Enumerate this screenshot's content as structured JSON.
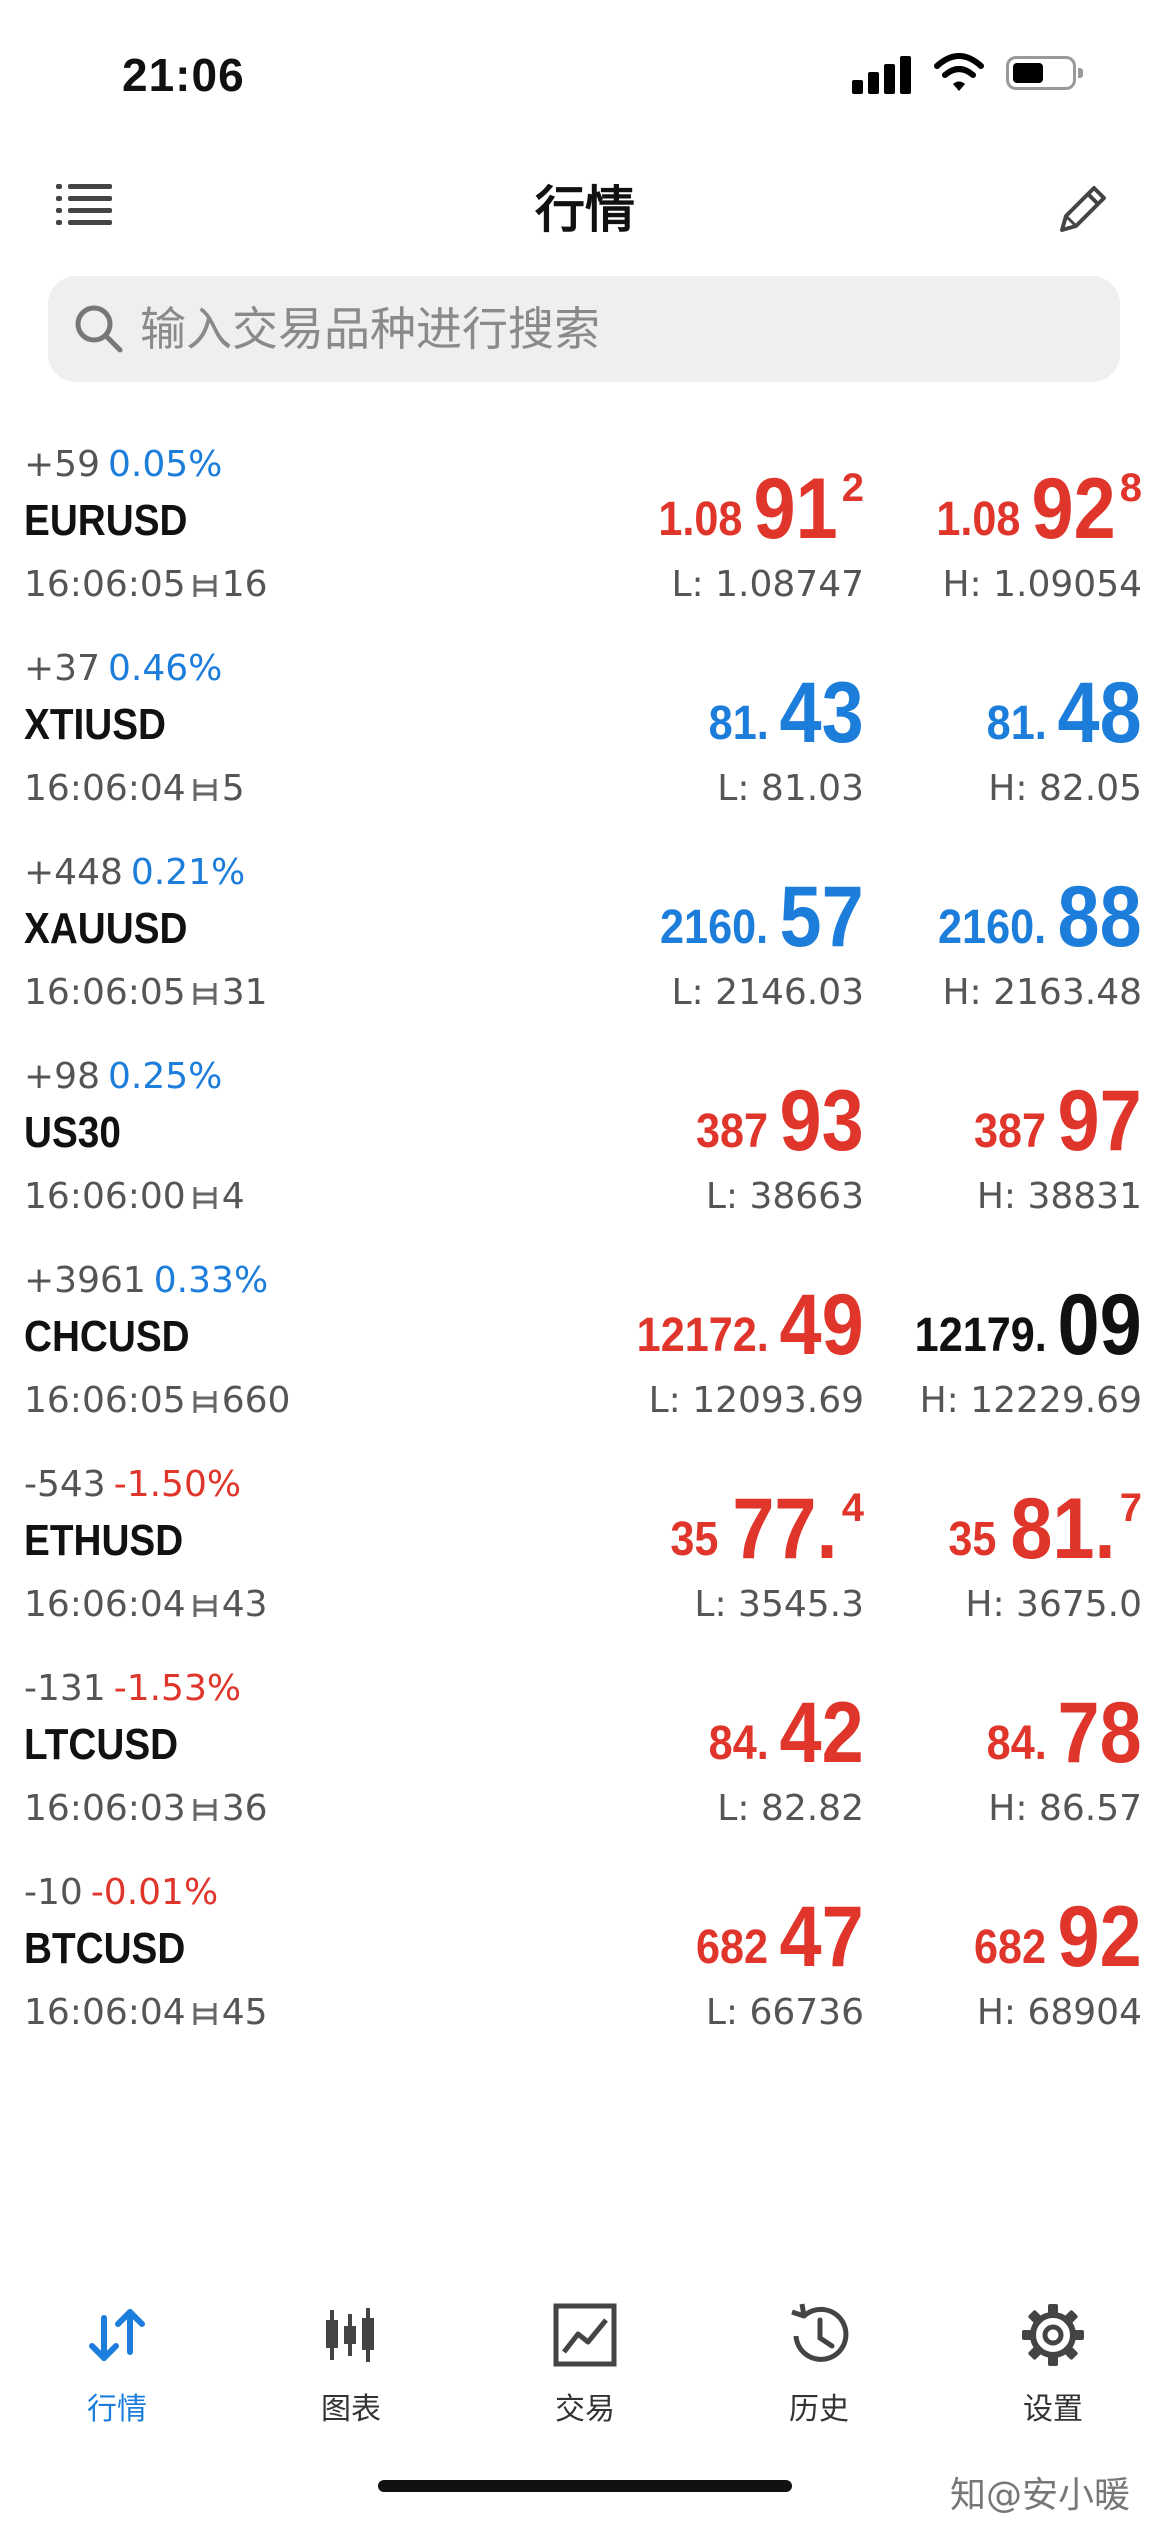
{
  "status_bar": {
    "time": "21:06"
  },
  "header": {
    "title": "行情"
  },
  "search": {
    "placeholder": "输入交易品种进行搜索"
  },
  "quotes": [
    {
      "change": "+59",
      "change_pct": "0.05%",
      "pct_color": "blue",
      "symbol": "EURUSD",
      "time": "16:06:05",
      "spread": "16",
      "bid": {
        "small": "1.08",
        "big": "91",
        "sup": "2",
        "color": "red"
      },
      "low": "L: 1.08747",
      "ask": {
        "small": "1.08",
        "big": "92",
        "sup": "8",
        "color": "red"
      },
      "high": "H: 1.09054"
    },
    {
      "change": "+37",
      "change_pct": "0.46%",
      "pct_color": "blue",
      "symbol": "XTIUSD",
      "time": "16:06:04",
      "spread": "5",
      "bid": {
        "small": "81.",
        "big": "43",
        "sup": "",
        "color": "blue"
      },
      "low": "L: 81.03",
      "ask": {
        "small": "81.",
        "big": "48",
        "sup": "",
        "color": "blue"
      },
      "high": "H: 82.05"
    },
    {
      "change": "+448",
      "change_pct": "0.21%",
      "pct_color": "blue",
      "symbol": "XAUUSD",
      "time": "16:06:05",
      "spread": "31",
      "bid": {
        "small": "2160.",
        "big": "57",
        "sup": "",
        "color": "blue"
      },
      "low": "L: 2146.03",
      "ask": {
        "small": "2160.",
        "big": "88",
        "sup": "",
        "color": "blue"
      },
      "high": "H: 2163.48"
    },
    {
      "change": "+98",
      "change_pct": "0.25%",
      "pct_color": "blue",
      "symbol": "US30",
      "time": "16:06:00",
      "spread": "4",
      "bid": {
        "small": "387",
        "big": "93",
        "sup": "",
        "color": "red"
      },
      "low": "L: 38663",
      "ask": {
        "small": "387",
        "big": "97",
        "sup": "",
        "color": "red"
      },
      "high": "H: 38831"
    },
    {
      "change": "+3961",
      "change_pct": "0.33%",
      "pct_color": "blue",
      "symbol": "CHCUSD",
      "time": "16:06:05",
      "spread": "660",
      "bid": {
        "small": "12172.",
        "big": "49",
        "sup": "",
        "color": "red"
      },
      "low": "L: 12093.69",
      "ask": {
        "small": "12179.",
        "big": "09",
        "sup": "",
        "color": "black"
      },
      "high": "H: 12229.69"
    },
    {
      "change": "-543",
      "change_pct": "-1.50%",
      "pct_color": "red",
      "symbol": "ETHUSD",
      "time": "16:06:04",
      "spread": "43",
      "bid": {
        "small": "35",
        "big": "77.",
        "sup": "4",
        "color": "red"
      },
      "low": "L: 3545.3",
      "ask": {
        "small": "35",
        "big": "81.",
        "sup": "7",
        "color": "red"
      },
      "high": "H: 3675.0"
    },
    {
      "change": "-131",
      "change_pct": "-1.53%",
      "pct_color": "red",
      "symbol": "LTCUSD",
      "time": "16:06:03",
      "spread": "36",
      "bid": {
        "small": "84.",
        "big": "42",
        "sup": "",
        "color": "red"
      },
      "low": "L: 82.82",
      "ask": {
        "small": "84.",
        "big": "78",
        "sup": "",
        "color": "red"
      },
      "high": "H: 86.57"
    },
    {
      "change": "-10",
      "change_pct": "-0.01%",
      "pct_color": "red",
      "symbol": "BTCUSD",
      "time": "16:06:04",
      "spread": "45",
      "bid": {
        "small": "682",
        "big": "47",
        "sup": "",
        "color": "red"
      },
      "low": "L: 66736",
      "ask": {
        "small": "682",
        "big": "92",
        "sup": "",
        "color": "red"
      },
      "high": "H: 68904"
    }
  ],
  "tabs": [
    {
      "label": "行情",
      "icon": "quotes-arrows-icon",
      "active": true
    },
    {
      "label": "图表",
      "icon": "candlestick-chart-icon",
      "active": false
    },
    {
      "label": "交易",
      "icon": "trade-chart-icon",
      "active": false
    },
    {
      "label": "历史",
      "icon": "history-clock-icon",
      "active": false
    },
    {
      "label": "设置",
      "icon": "settings-gear-icon",
      "active": false
    }
  ],
  "watermark": "知@安小暖",
  "colors": {
    "red": "#e0352b",
    "blue": "#1c7ddb",
    "black": "#111111"
  }
}
